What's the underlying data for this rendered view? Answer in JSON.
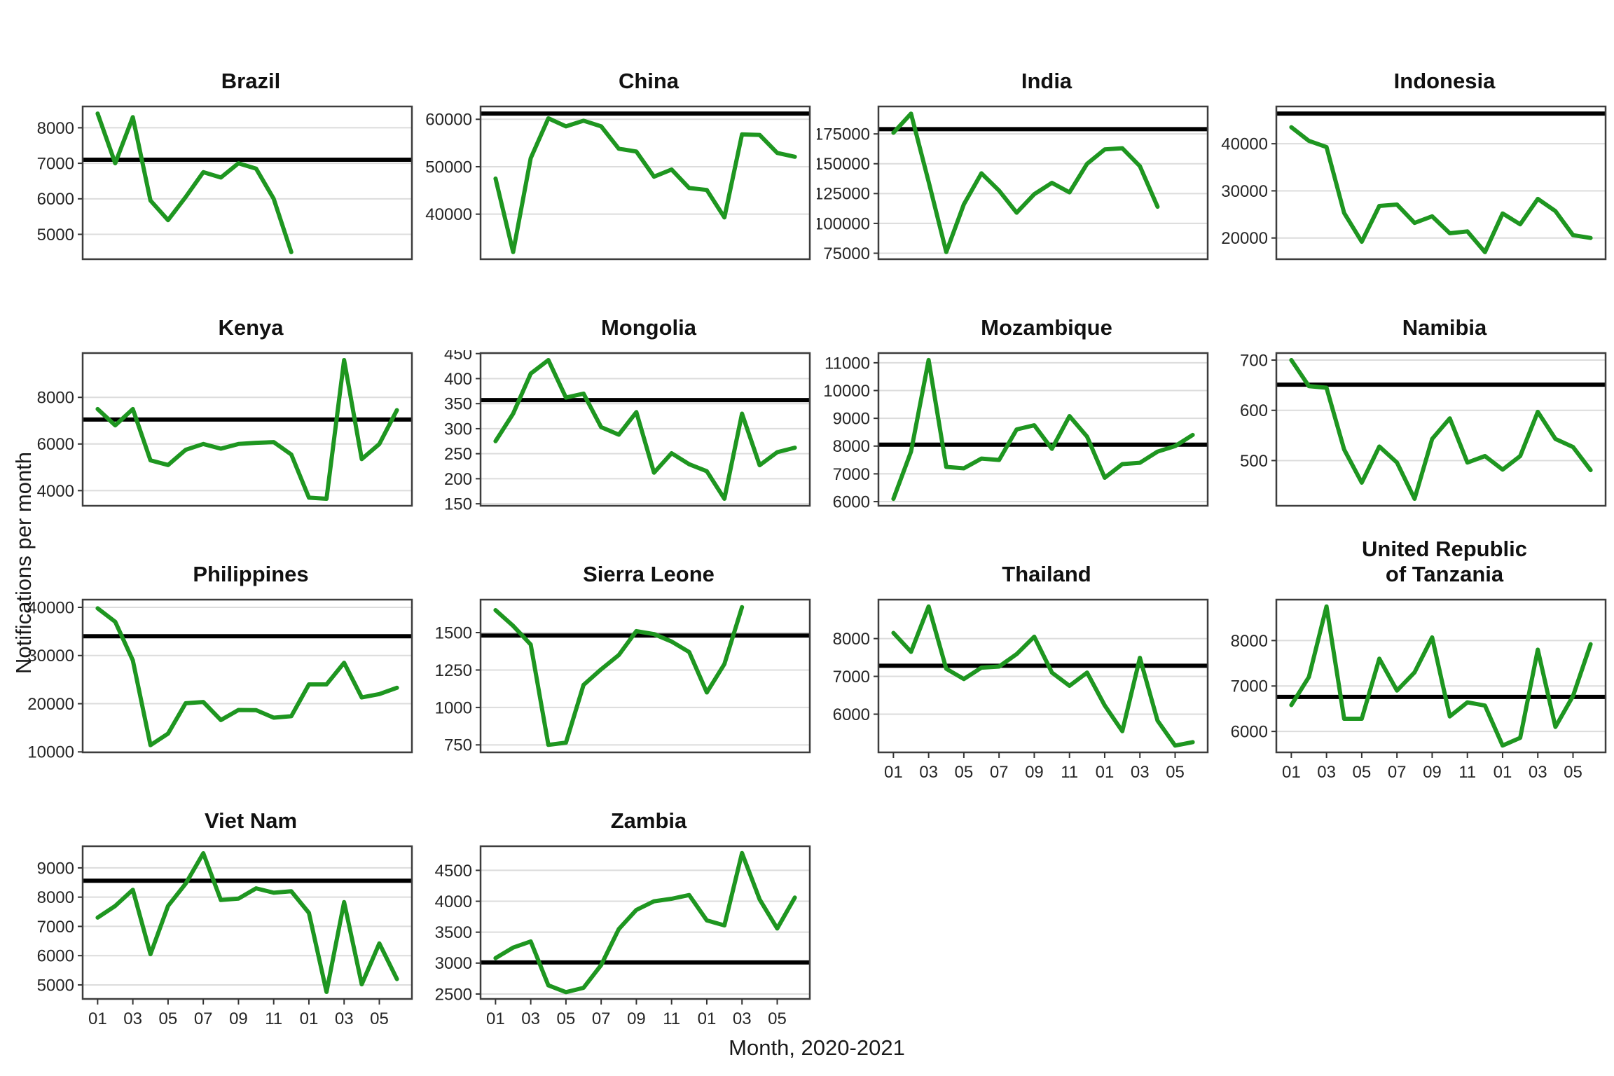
{
  "chart_data": {
    "type": "line",
    "ylabel": "Notifications per month",
    "xlabel": "Month, 2020-2021",
    "x_range_note": "18 monthly slots, Jan 2020 - Jun 2021",
    "x_tick_labels": [
      "01",
      "03",
      "05",
      "07",
      "09",
      "11",
      "01",
      "03",
      "05"
    ],
    "x_tick_months": [
      1,
      3,
      5,
      7,
      9,
      11,
      13,
      15,
      17
    ],
    "line_color": "#1e9620",
    "reference_line_color": "#000000",
    "grid_color": "#dcdcdc",
    "facets": [
      {
        "title": "Brazil",
        "title_lines": [
          "Brazil"
        ],
        "show_x_axis": false,
        "yticks": [
          8000,
          7000,
          6000,
          5000
        ],
        "ylim": [
          4300,
          8600
        ],
        "ref_line": 7100,
        "values": [
          8400,
          7000,
          8300,
          5950,
          5400,
          6050,
          6750,
          6600,
          7000,
          6850,
          6000,
          4500
        ]
      },
      {
        "title": "China",
        "title_lines": [
          "China"
        ],
        "show_x_axis": false,
        "yticks": [
          60000,
          50000,
          40000
        ],
        "ylim": [
          30500,
          62700
        ],
        "ref_line": 61200,
        "values": [
          47500,
          32000,
          51800,
          60200,
          58500,
          59700,
          58500,
          53800,
          53200,
          47900,
          49400,
          45500,
          45100,
          39300,
          56800,
          56700,
          52900,
          52100
        ]
      },
      {
        "title": "India",
        "title_lines": [
          "India"
        ],
        "show_x_axis": false,
        "yticks": [
          175000,
          150000,
          125000,
          100000,
          75000
        ],
        "ylim": [
          70000,
          198000
        ],
        "ref_line": 179000,
        "values": [
          176000,
          192000,
          135000,
          76000,
          116000,
          142000,
          127500,
          109000,
          124500,
          134000,
          126000,
          150000,
          162000,
          163000,
          148000,
          114000
        ]
      },
      {
        "title": "Indonesia",
        "title_lines": [
          "Indonesia"
        ],
        "show_x_axis": false,
        "yticks": [
          40000,
          30000,
          20000
        ],
        "ylim": [
          15500,
          47900
        ],
        "ref_line": 46400,
        "values": [
          43500,
          40600,
          39300,
          25300,
          19200,
          26800,
          27100,
          23200,
          24600,
          21000,
          21400,
          17000,
          25200,
          22900,
          28300,
          25700,
          20600,
          20000
        ]
      },
      {
        "title": "Kenya",
        "title_lines": [
          "Kenya"
        ],
        "show_x_axis": false,
        "yticks": [
          8000,
          6000,
          4000
        ],
        "ylim": [
          3350,
          9900
        ],
        "ref_line": 7050,
        "values": [
          7500,
          6800,
          7500,
          5300,
          5100,
          5750,
          6000,
          5800,
          6000,
          6050,
          6080,
          5550,
          3700,
          3650,
          9600,
          5350,
          6000,
          7450
        ]
      },
      {
        "title": "Mongolia",
        "title_lines": [
          "Mongolia"
        ],
        "show_x_axis": false,
        "yticks": [
          450,
          400,
          350,
          300,
          250,
          200,
          150
        ],
        "ylim": [
          146,
          451
        ],
        "ref_line": 357,
        "values": [
          275,
          330,
          410,
          437,
          362,
          370,
          303,
          288,
          333,
          212,
          251,
          229,
          215,
          160,
          330,
          227,
          253,
          262
        ]
      },
      {
        "title": "Mozambique",
        "title_lines": [
          "Mozambique"
        ],
        "show_x_axis": false,
        "yticks": [
          11000,
          10000,
          9000,
          8000,
          7000,
          6000
        ],
        "ylim": [
          5850,
          11350
        ],
        "ref_line": 8050,
        "values": [
          6100,
          7800,
          11100,
          7250,
          7200,
          7550,
          7500,
          8600,
          8750,
          7900,
          9080,
          8340,
          6860,
          7350,
          7400,
          7800,
          8000,
          8400
        ]
      },
      {
        "title": "Namibia",
        "title_lines": [
          "Namibia"
        ],
        "show_x_axis": false,
        "yticks": [
          700,
          600,
          500
        ],
        "ylim": [
          410,
          714
        ],
        "ref_line": 651,
        "values": [
          700,
          648,
          645,
          522,
          456,
          528,
          496,
          424,
          543,
          584,
          496,
          509,
          482,
          509,
          597,
          543,
          527,
          481
        ]
      },
      {
        "title": "Philippines",
        "title_lines": [
          "Philippines"
        ],
        "show_x_axis": false,
        "yticks": [
          40000,
          30000,
          20000,
          10000
        ],
        "ylim": [
          9900,
          41600
        ],
        "ref_line": 34000,
        "values": [
          39800,
          37000,
          29000,
          11400,
          13800,
          20100,
          20350,
          16600,
          18700,
          18650,
          17100,
          17400,
          24000,
          24000,
          28500,
          21300,
          22000,
          23300
        ]
      },
      {
        "title": "Sierra Leone",
        "title_lines": [
          "Sierra Leone"
        ],
        "show_x_axis": false,
        "yticks": [
          1500,
          1250,
          1000,
          750
        ],
        "ylim": [
          700,
          1720
        ],
        "ref_line": 1480,
        "values": [
          1650,
          1545,
          1420,
          750,
          765,
          1150,
          1255,
          1350,
          1510,
          1490,
          1440,
          1370,
          1100,
          1290,
          1670
        ]
      },
      {
        "title": "Thailand",
        "title_lines": [
          "Thailand"
        ],
        "show_x_axis": true,
        "yticks": [
          8000,
          7000,
          6000
        ],
        "ylim": [
          4990,
          9030
        ],
        "ref_line": 7280,
        "values": [
          8150,
          7650,
          8850,
          7200,
          6930,
          7230,
          7260,
          7590,
          8050,
          7100,
          6750,
          7100,
          6230,
          5550,
          7490,
          5830,
          5170,
          5260
        ]
      },
      {
        "title": "United Republic of Tanzania",
        "title_lines": [
          "United Republic",
          "of Tanzania"
        ],
        "show_x_axis": true,
        "yticks": [
          8000,
          7000,
          6000
        ],
        "ylim": [
          5540,
          8900
        ],
        "ref_line": 6760,
        "values": [
          6580,
          7200,
          8750,
          6280,
          6280,
          7600,
          6900,
          7300,
          8070,
          6330,
          6640,
          6570,
          5690,
          5860,
          7800,
          6100,
          6780,
          7920
        ]
      },
      {
        "title": "Viet Nam",
        "title_lines": [
          "Viet Nam"
        ],
        "show_x_axis": true,
        "yticks": [
          9000,
          8000,
          7000,
          6000,
          5000
        ],
        "ylim": [
          4520,
          9740
        ],
        "ref_line": 8560,
        "values": [
          7300,
          7700,
          8250,
          6050,
          7700,
          8460,
          9500,
          7900,
          7950,
          8300,
          8150,
          8200,
          7460,
          4760,
          7830,
          5020,
          6420,
          5200
        ]
      },
      {
        "title": "Zambia",
        "title_lines": [
          "Zambia"
        ],
        "show_x_axis": true,
        "yticks": [
          4500,
          4000,
          3500,
          3000,
          2500
        ],
        "ylim": [
          2420,
          4890
        ],
        "ref_line": 3010,
        "values": [
          3080,
          3250,
          3350,
          2640,
          2530,
          2600,
          2970,
          3550,
          3860,
          4000,
          4040,
          4100,
          3690,
          3610,
          4780,
          4030,
          3560,
          4060
        ]
      }
    ]
  }
}
